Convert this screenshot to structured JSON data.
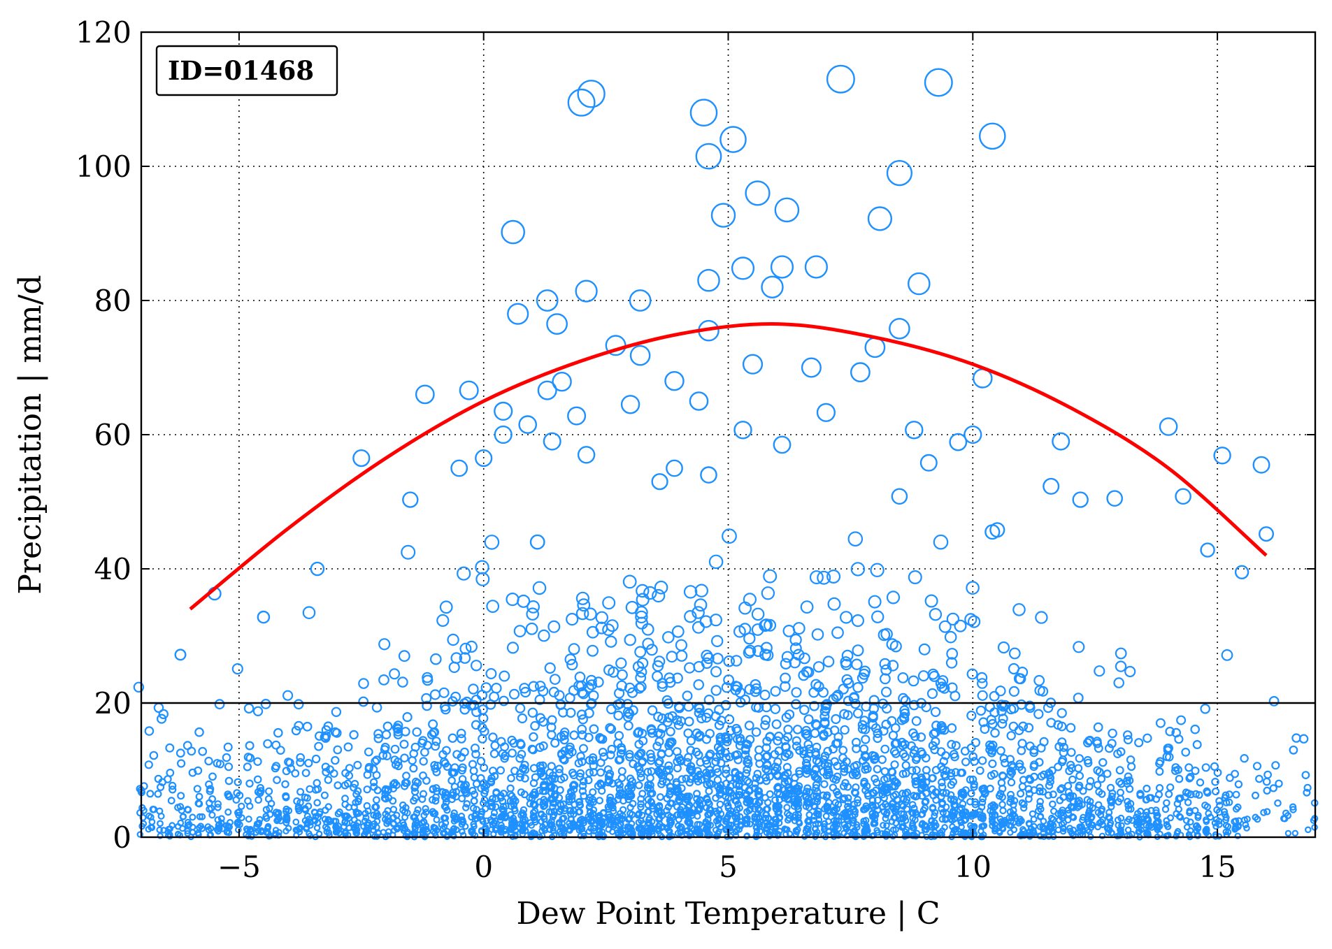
{
  "chart_data": {
    "type": "scatter",
    "id_label": "ID=01468",
    "xlabel": "Dew Point Temperature | C",
    "ylabel": "Precipitation | mm/d",
    "xlim": [
      -7,
      17
    ],
    "ylim": [
      0,
      120
    ],
    "x_ticks": [
      -5,
      0,
      5,
      10,
      15
    ],
    "x_tick_labels": [
      "−5",
      "0",
      "5",
      "10",
      "15"
    ],
    "y_ticks": [
      0,
      20,
      40,
      60,
      80,
      100,
      120
    ],
    "y_tick_labels": [
      "0",
      "20",
      "40",
      "60",
      "80",
      "100",
      "120"
    ],
    "grid": true,
    "marker_color": "#1e90ff",
    "fit_color": "#ff0000",
    "threshold_line": {
      "y": 20,
      "color": "#000000"
    },
    "fit_curve": {
      "x": [
        -6,
        -4,
        -2,
        0,
        2,
        4,
        6,
        8,
        10,
        12,
        14,
        16
      ],
      "y": [
        34,
        46,
        56.5,
        65,
        71,
        75,
        76.5,
        74.5,
        70.5,
        64,
        55,
        42
      ]
    },
    "highlight_points": {
      "x": [
        2.0,
        2.2,
        4.5,
        7.3,
        9.3,
        10.4,
        4.6,
        5.1,
        8.5,
        5.6,
        6.2,
        4.9,
        0.6,
        8.1,
        6.1,
        5.3,
        6.8,
        2.1,
        3.2,
        1.3,
        8.9,
        4.6,
        5.9,
        0.7,
        1.5,
        4.6,
        8.5,
        2.7,
        3.2,
        5.5,
        6.7,
        3.9,
        7.7,
        10.2,
        1.9,
        1.3,
        -1.2,
        4.4,
        1.6,
        3.0,
        -0.3,
        2.1,
        1.4,
        0.4,
        0.9,
        7.0,
        0.0,
        8.0,
        6.1,
        10.0,
        14.0,
        4.6,
        8.8,
        3.9,
        5.3,
        0.4,
        -0.5,
        11.8,
        15.1,
        15.9,
        9.7,
        9.1,
        3.6,
        12.9,
        14.3,
        10.5,
        11.6,
        1.1,
        8.5,
        10.4,
        12.2,
        14.8,
        15.5,
        16.0,
        -2.5,
        -3.4,
        -4.5,
        -5.5,
        -6.2,
        -1.5
      ],
      "y": [
        109.5,
        110.8,
        108,
        113,
        112.5,
        104.5,
        101.5,
        104,
        99,
        96,
        93.5,
        92.7,
        90.2,
        92.2,
        85,
        84.8,
        85,
        81.4,
        80,
        80,
        82.5,
        83,
        82,
        78,
        76.5,
        75.5,
        75.8,
        73.3,
        71.8,
        70.5,
        70,
        68,
        69.3,
        68.4,
        62.8,
        66.6,
        66,
        65,
        67.9,
        64.5,
        66.6,
        57,
        59,
        60,
        61.5,
        63.3,
        56.5,
        73,
        58.5,
        60,
        61.2,
        54,
        60.7,
        55,
        60.7,
        63.5,
        55,
        59,
        56.9,
        55.5,
        58.9,
        55.8,
        53,
        50.5,
        50.8,
        45.8,
        52.3,
        44,
        50.8,
        45.5,
        50.3,
        42.8,
        39.5,
        45.2,
        56.5,
        40,
        32.8,
        36.3,
        27.2,
        50.3
      ]
    },
    "bulk_cloud": {
      "description_of_density": "thousands of daily observations concentrated below 40 mm/d across the full dew point range",
      "x_range": [
        -7,
        17
      ],
      "y_range": [
        0,
        45
      ]
    }
  }
}
